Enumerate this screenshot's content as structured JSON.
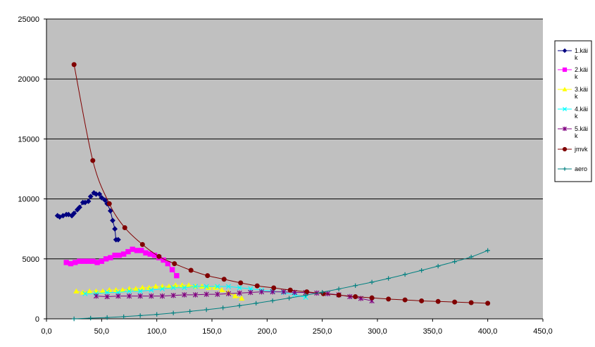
{
  "chart_data": {
    "type": "scatter",
    "title": "",
    "xlabel": "",
    "ylabel": "",
    "xlim": [
      0,
      450
    ],
    "ylim": [
      0,
      25000
    ],
    "x_ticks": [
      0,
      50,
      100,
      150,
      200,
      250,
      300,
      350,
      400,
      450
    ],
    "x_tick_labels": [
      "0,0",
      "50,0",
      "100,0",
      "150,0",
      "200,0",
      "250,0",
      "300,0",
      "350,0",
      "400,0",
      "450,0"
    ],
    "y_ticks": [
      0,
      5000,
      10000,
      15000,
      20000,
      25000
    ],
    "y_tick_labels": [
      "0",
      "5000",
      "10000",
      "15000",
      "20000",
      "25000"
    ],
    "grid": "horizontal major gridlines",
    "plot_background": "#c0c0c0",
    "legend_position": "right",
    "series": [
      {
        "name": "1.käik",
        "legend_lines": [
          "1.käi",
          "k"
        ],
        "color": "#000080",
        "marker": "diamond",
        "smooth": false,
        "x": [
          10,
          12,
          15,
          18,
          20,
          23,
          25,
          28,
          30,
          33,
          35,
          38,
          40,
          43,
          45,
          48,
          50,
          53,
          55,
          58,
          60,
          62,
          63,
          65
        ],
        "y": [
          8600,
          8500,
          8600,
          8700,
          8700,
          8600,
          8800,
          9100,
          9300,
          9700,
          9700,
          9800,
          10200,
          10500,
          10400,
          10400,
          10100,
          9900,
          9600,
          9000,
          8200,
          7500,
          6600,
          6600
        ]
      },
      {
        "name": "2.käik",
        "legend_lines": [
          "2.käi",
          "k"
        ],
        "color": "#ff00ff",
        "marker": "square",
        "smooth": false,
        "x": [
          18,
          22,
          26,
          30,
          34,
          38,
          42,
          46,
          50,
          54,
          58,
          62,
          66,
          70,
          74,
          78,
          82,
          86,
          90,
          94,
          98,
          102,
          106,
          110,
          114,
          118
        ],
        "y": [
          4700,
          4600,
          4700,
          4800,
          4800,
          4800,
          4800,
          4700,
          4800,
          5000,
          5100,
          5300,
          5300,
          5400,
          5600,
          5800,
          5700,
          5700,
          5500,
          5400,
          5300,
          5100,
          4900,
          4600,
          4100,
          3600
        ]
      },
      {
        "name": "3.käik",
        "legend_lines": [
          "3.käi",
          "k"
        ],
        "color": "#ffff00",
        "marker": "triangle",
        "smooth": false,
        "x": [
          27,
          33,
          39,
          45,
          51,
          57,
          63,
          69,
          75,
          81,
          87,
          93,
          99,
          105,
          111,
          117,
          123,
          129,
          135,
          141,
          147,
          153,
          159,
          165,
          171,
          177
        ],
        "y": [
          2300,
          2200,
          2300,
          2300,
          2300,
          2400,
          2400,
          2400,
          2500,
          2500,
          2600,
          2600,
          2700,
          2700,
          2700,
          2800,
          2800,
          2800,
          2700,
          2700,
          2600,
          2600,
          2400,
          2200,
          1900,
          1700
        ]
      },
      {
        "name": "4.käik",
        "legend_lines": [
          "4.käi",
          "k"
        ],
        "color": "#00ffff",
        "marker": "x",
        "smooth": false,
        "x": [
          35,
          45,
          55,
          65,
          75,
          85,
          95,
          105,
          115,
          125,
          135,
          145,
          155,
          165,
          175,
          185,
          195,
          205,
          215,
          225,
          235
        ],
        "y": [
          2100,
          2100,
          2200,
          2200,
          2300,
          2300,
          2400,
          2500,
          2600,
          2600,
          2700,
          2700,
          2700,
          2700,
          2600,
          2500,
          2400,
          2300,
          2200,
          2000,
          1800
        ]
      },
      {
        "name": "5.käik",
        "legend_lines": [
          "5.käi",
          "k"
        ],
        "color": "#800080",
        "marker": "star",
        "smooth": false,
        "x": [
          45,
          55,
          65,
          75,
          85,
          95,
          105,
          115,
          125,
          135,
          145,
          155,
          165,
          175,
          185,
          195,
          205,
          215,
          225,
          235,
          245,
          255,
          265,
          275,
          285,
          295
        ],
        "y": [
          1900,
          1850,
          1900,
          1900,
          1900,
          1900,
          1900,
          1950,
          2000,
          2000,
          2050,
          2050,
          2100,
          2150,
          2200,
          2250,
          2250,
          2250,
          2200,
          2200,
          2150,
          2100,
          2000,
          1850,
          1700,
          1500
        ]
      },
      {
        "name": "jmvk",
        "legend_lines": [
          "jmvk"
        ],
        "color": "#800000",
        "marker": "circle",
        "smooth": true,
        "x": [
          25,
          42,
          57,
          71,
          87,
          102,
          116,
          131,
          146,
          161,
          176,
          191,
          206,
          221,
          236,
          251,
          265,
          280,
          295,
          310,
          325,
          340,
          355,
          370,
          385,
          400
        ],
        "y": [
          21200,
          13200,
          9600,
          7600,
          6200,
          5200,
          4600,
          4050,
          3600,
          3300,
          3000,
          2750,
          2580,
          2400,
          2250,
          2100,
          1980,
          1850,
          1750,
          1650,
          1580,
          1500,
          1450,
          1400,
          1350,
          1300
        ]
      },
      {
        "name": "aero",
        "legend_lines": [
          "aero"
        ],
        "color": "#008080",
        "marker": "plus",
        "smooth": true,
        "x": [
          25,
          40,
          55,
          70,
          85,
          100,
          115,
          130,
          145,
          160,
          175,
          190,
          205,
          220,
          235,
          250,
          265,
          280,
          295,
          310,
          325,
          340,
          355,
          370,
          385,
          400
        ],
        "y": [
          0,
          60,
          110,
          180,
          270,
          370,
          490,
          620,
          760,
          920,
          1100,
          1300,
          1510,
          1730,
          1970,
          2220,
          2490,
          2770,
          3060,
          3370,
          3700,
          4040,
          4400,
          4770,
          5160,
          5700
        ]
      }
    ]
  }
}
